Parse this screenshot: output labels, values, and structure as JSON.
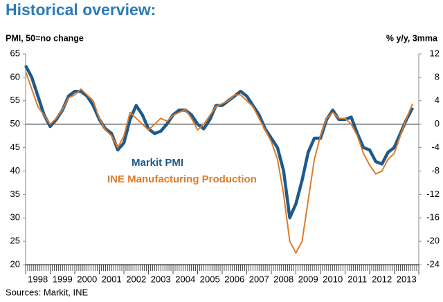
{
  "chart_data": {
    "type": "line",
    "title": "Historical overview:",
    "y_label": "PMI, 50=no change",
    "y2_label": "% y/y, 3mma",
    "source": "Sources: Markit, INE",
    "x": [
      1998,
      1998.25,
      1998.5,
      1998.75,
      1999,
      1999.25,
      1999.5,
      1999.75,
      2000,
      2000.25,
      2000.5,
      2000.75,
      2001,
      2001.25,
      2001.5,
      2001.75,
      2002,
      2002.25,
      2002.5,
      2002.75,
      2003,
      2003.25,
      2003.5,
      2003.75,
      2004,
      2004.25,
      2004.5,
      2004.75,
      2005,
      2005.25,
      2005.5,
      2005.75,
      2006,
      2006.25,
      2006.5,
      2006.75,
      2007,
      2007.25,
      2007.5,
      2007.75,
      2008,
      2008.25,
      2008.5,
      2008.75,
      2009,
      2009.25,
      2009.5,
      2009.75,
      2010,
      2010.25,
      2010.5,
      2010.75,
      2011,
      2011.25,
      2011.5,
      2011.75,
      2012,
      2012.25,
      2012.5,
      2012.75,
      2013,
      2013.25,
      2013.5,
      2013.75
    ],
    "series": [
      {
        "name": "Markit PMI",
        "color": "#1f5a8a",
        "axis": "y",
        "values": [
          62.5,
          60,
          56,
          52,
          49.5,
          51,
          53,
          56,
          57,
          57,
          56,
          54,
          51,
          49,
          48,
          44.5,
          46,
          51,
          54,
          52,
          49,
          48,
          48.5,
          50,
          52,
          53,
          53,
          52,
          50,
          49,
          51,
          54,
          54,
          55,
          56,
          57,
          56,
          54,
          52,
          49,
          47,
          45,
          40,
          30,
          33,
          38,
          44,
          47,
          47,
          51,
          53,
          51,
          51,
          51.5,
          48,
          45,
          44.5,
          42,
          41.5,
          44,
          45,
          48,
          51,
          53.5
        ]
      },
      {
        "name": "INE Manufacturing Production",
        "color": "#e07b27",
        "axis": "y2",
        "values": [
          9,
          6,
          3,
          1.5,
          0,
          1,
          2.5,
          4.5,
          5,
          6,
          5,
          4,
          1,
          -1,
          -2,
          -4,
          -2,
          2,
          1,
          0,
          -1,
          0,
          1,
          0.5,
          1.5,
          2,
          2.5,
          1,
          -1,
          0,
          1.5,
          3,
          3.5,
          4,
          5,
          5,
          4,
          3,
          1,
          -1,
          -3,
          -6,
          -12,
          -20,
          -22,
          -20,
          -13,
          -6,
          -2,
          1,
          2,
          1,
          1,
          0,
          -2,
          -5,
          -7,
          -8.5,
          -8,
          -6,
          -5,
          -2,
          1,
          3.5
        ]
      }
    ],
    "xlim": [
      1998,
      2014
    ],
    "xticks": [
      {
        "value": 1998.5,
        "label": "1998"
      },
      {
        "value": 1999.5,
        "label": "1999"
      },
      {
        "value": 2000.5,
        "label": "2000"
      },
      {
        "value": 2001.5,
        "label": "2001"
      },
      {
        "value": 2002.5,
        "label": "2002"
      },
      {
        "value": 2003.5,
        "label": "2003"
      },
      {
        "value": 2004.5,
        "label": "2004"
      },
      {
        "value": 2005.5,
        "label": "2005"
      },
      {
        "value": 2006.5,
        "label": "2006"
      },
      {
        "value": 2007.5,
        "label": "2007"
      },
      {
        "value": 2008.5,
        "label": "2008"
      },
      {
        "value": 2009.5,
        "label": "2009"
      },
      {
        "value": 2010.5,
        "label": "2010"
      },
      {
        "value": 2011.5,
        "label": "2011"
      },
      {
        "value": 2012.5,
        "label": "2012"
      },
      {
        "value": 2013.5,
        "label": "2013"
      }
    ],
    "ylim": [
      20,
      65
    ],
    "yticks": [
      20,
      25,
      30,
      35,
      40,
      45,
      50,
      55,
      60,
      65
    ],
    "y2lim": [
      -24,
      12
    ],
    "y2ticks": [
      -24,
      -20,
      -16,
      -12,
      -8,
      -4,
      0,
      4,
      8,
      12
    ],
    "hline": 50,
    "grid": false
  }
}
